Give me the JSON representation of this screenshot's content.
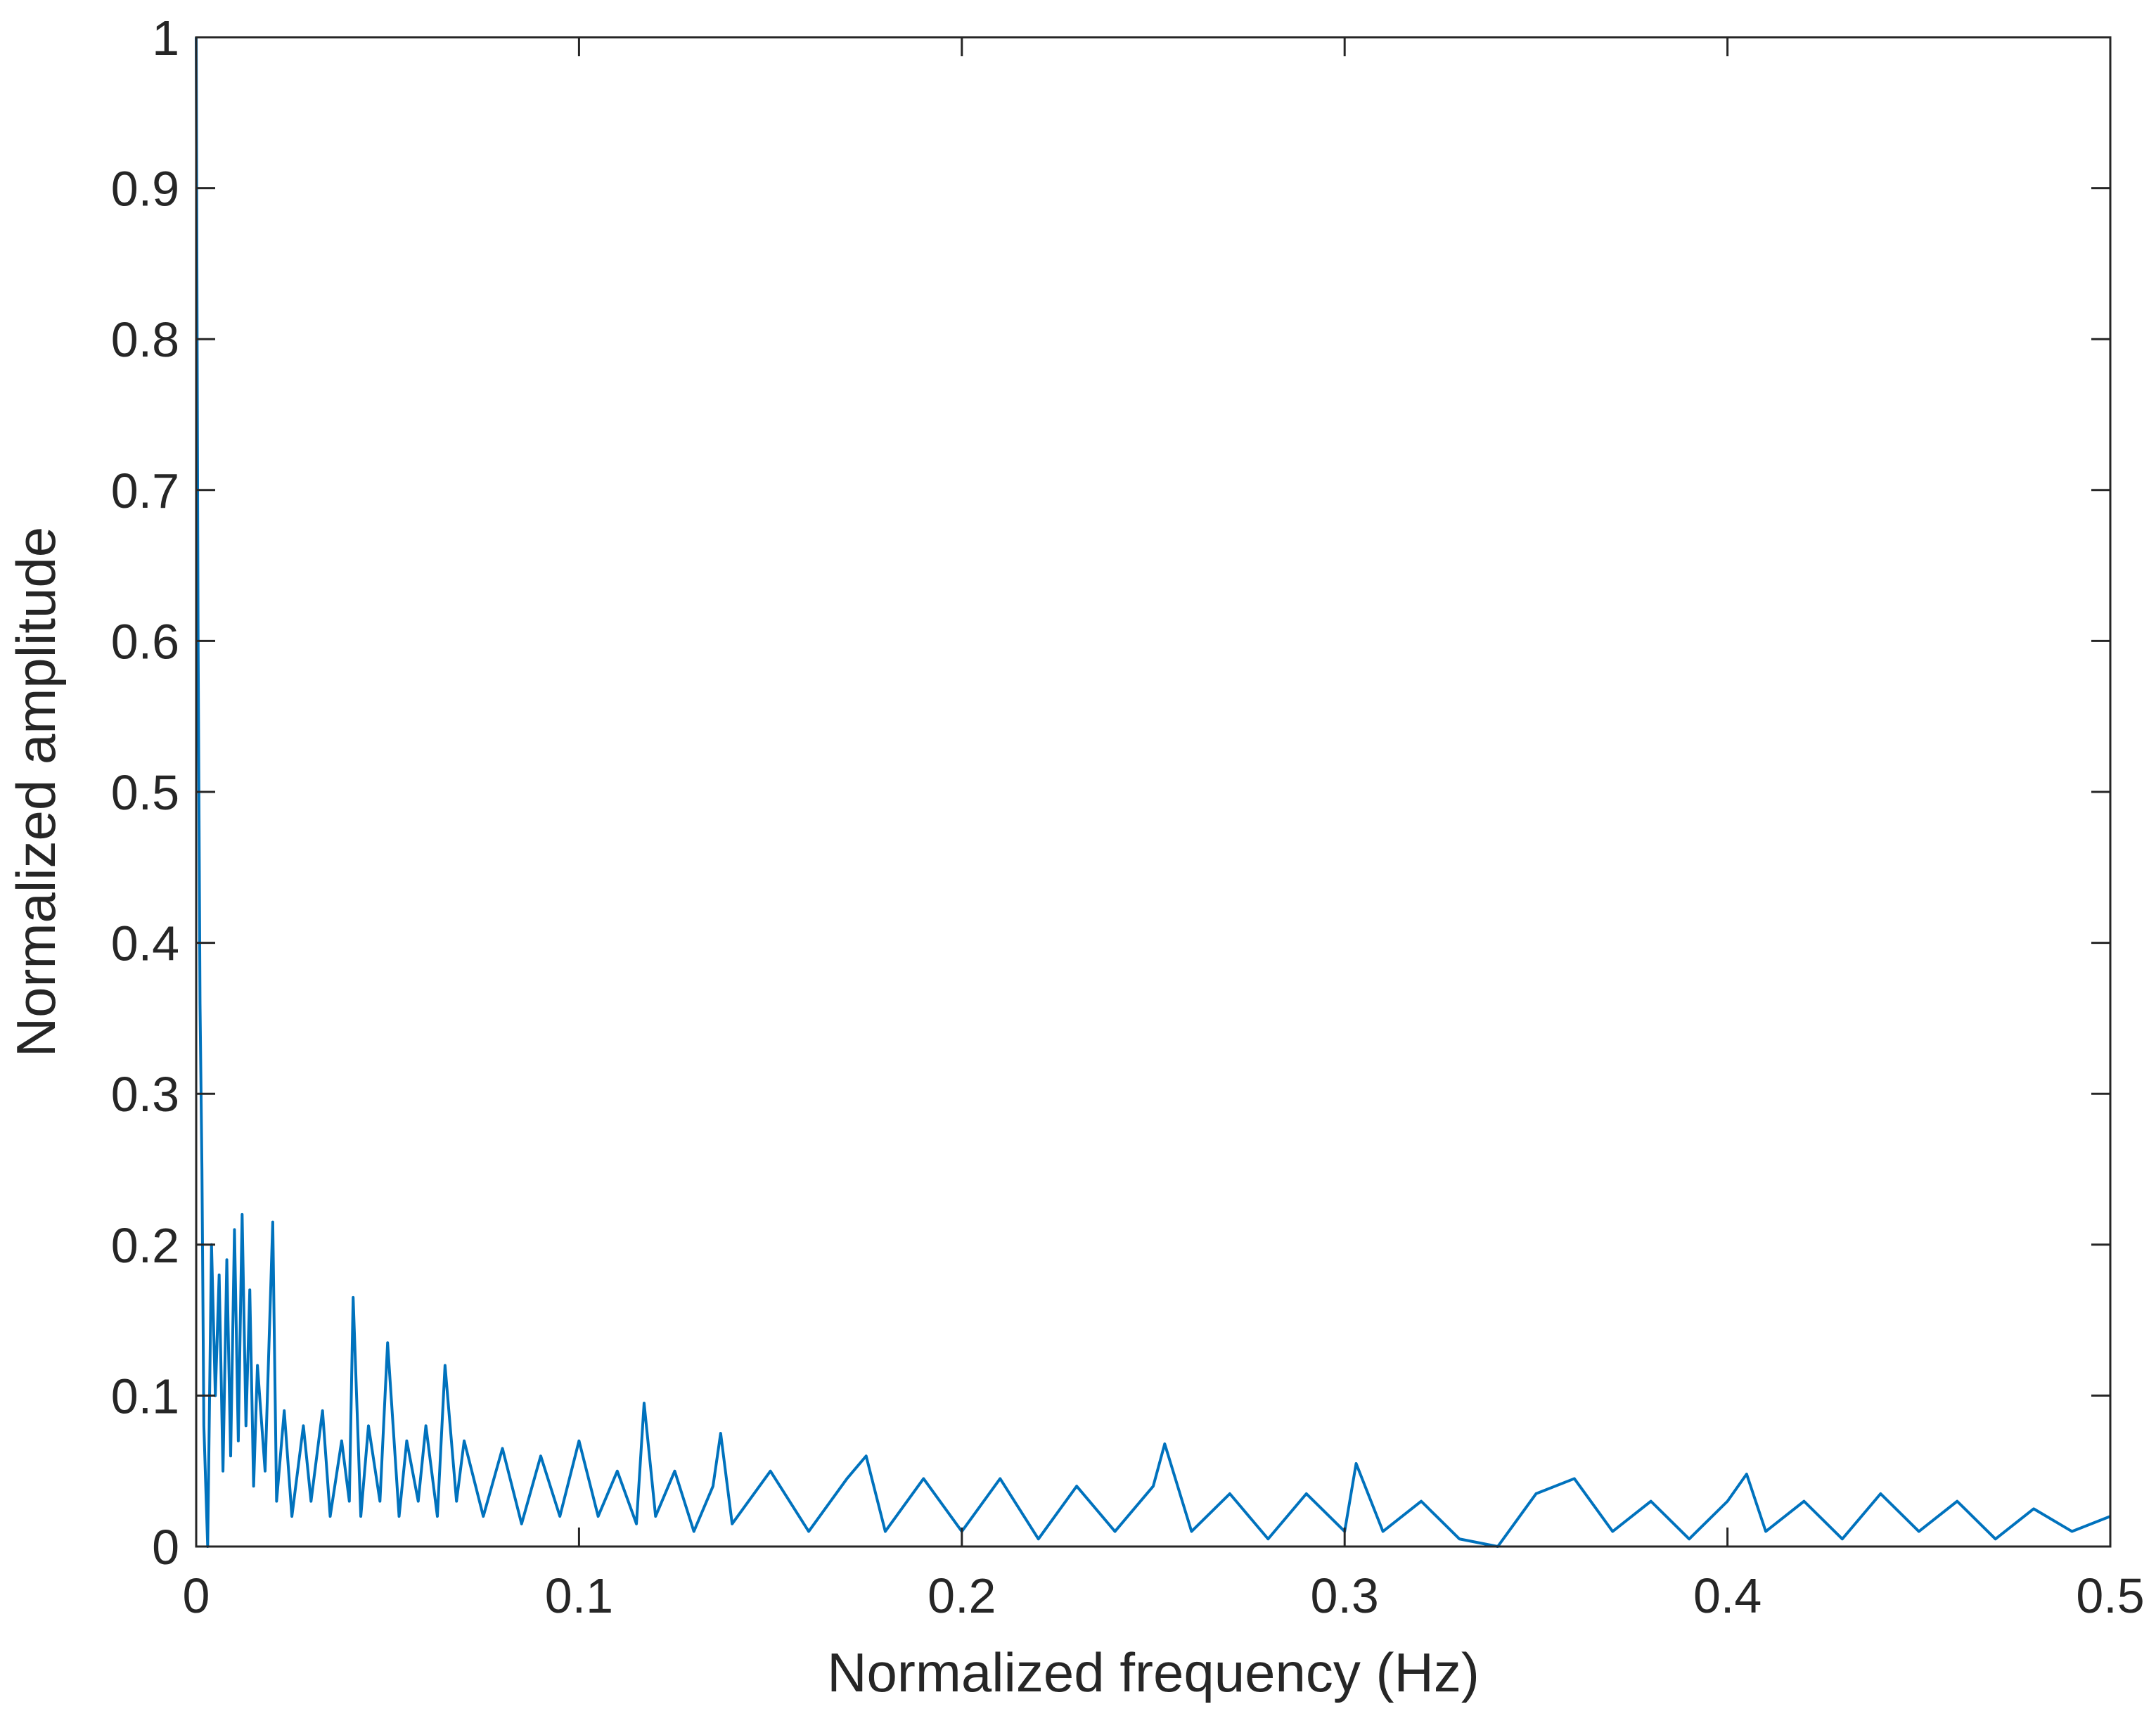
{
  "chart_data": {
    "type": "line",
    "xlabel": "Normalized frequency (Hz)",
    "ylabel": "Normalized amplitude",
    "xlim": [
      0,
      0.5
    ],
    "ylim": [
      0,
      1
    ],
    "xticks": [
      0,
      0.1,
      0.2,
      0.3,
      0.4,
      0.5
    ],
    "yticks": [
      0,
      0.1,
      0.2,
      0.3,
      0.4,
      0.5,
      0.6,
      0.7,
      0.8,
      0.9,
      1
    ],
    "series": [
      {
        "color": "#0072BD",
        "x": [
          0,
          0.0005,
          0.001,
          0.0015,
          0.002,
          0.003,
          0.004,
          0.005,
          0.006,
          0.007,
          0.008,
          0.009,
          0.01,
          0.011,
          0.012,
          0.013,
          0.014,
          0.015,
          0.016,
          0.018,
          0.02,
          0.021,
          0.023,
          0.025,
          0.028,
          0.03,
          0.033,
          0.035,
          0.038,
          0.04,
          0.041,
          0.043,
          0.045,
          0.048,
          0.05,
          0.053,
          0.055,
          0.058,
          0.06,
          0.063,
          0.065,
          0.068,
          0.07,
          0.075,
          0.08,
          0.085,
          0.09,
          0.095,
          0.1,
          0.105,
          0.11,
          0.115,
          0.117,
          0.12,
          0.125,
          0.13,
          0.135,
          0.137,
          0.14,
          0.15,
          0.16,
          0.17,
          0.175,
          0.18,
          0.19,
          0.2,
          0.21,
          0.22,
          0.23,
          0.24,
          0.25,
          0.253,
          0.26,
          0.27,
          0.28,
          0.29,
          0.3,
          0.303,
          0.31,
          0.32,
          0.33,
          0.34,
          0.35,
          0.36,
          0.37,
          0.38,
          0.39,
          0.4,
          0.405,
          0.41,
          0.42,
          0.43,
          0.44,
          0.45,
          0.46,
          0.47,
          0.48,
          0.49,
          0.5
        ],
        "values": [
          1,
          0.6,
          0.36,
          0.25,
          0.08,
          0.0,
          0.2,
          0.1,
          0.18,
          0.05,
          0.19,
          0.06,
          0.21,
          0.07,
          0.22,
          0.08,
          0.17,
          0.04,
          0.12,
          0.05,
          0.215,
          0.03,
          0.09,
          0.02,
          0.08,
          0.03,
          0.09,
          0.02,
          0.07,
          0.03,
          0.165,
          0.02,
          0.08,
          0.03,
          0.135,
          0.02,
          0.07,
          0.03,
          0.08,
          0.02,
          0.12,
          0.03,
          0.07,
          0.02,
          0.065,
          0.015,
          0.06,
          0.02,
          0.07,
          0.02,
          0.05,
          0.015,
          0.095,
          0.02,
          0.05,
          0.01,
          0.04,
          0.075,
          0.015,
          0.05,
          0.01,
          0.045,
          0.06,
          0.01,
          0.045,
          0.01,
          0.045,
          0.005,
          0.04,
          0.01,
          0.04,
          0.068,
          0.01,
          0.035,
          0.005,
          0.035,
          0.01,
          0.055,
          0.01,
          0.03,
          0.005,
          0.0,
          0.035,
          0.045,
          0.01,
          0.03,
          0.005,
          0.03,
          0.048,
          0.01,
          0.03,
          0.005,
          0.035,
          0.01,
          0.03,
          0.005,
          0.025,
          0.01,
          0.02
        ]
      }
    ]
  }
}
